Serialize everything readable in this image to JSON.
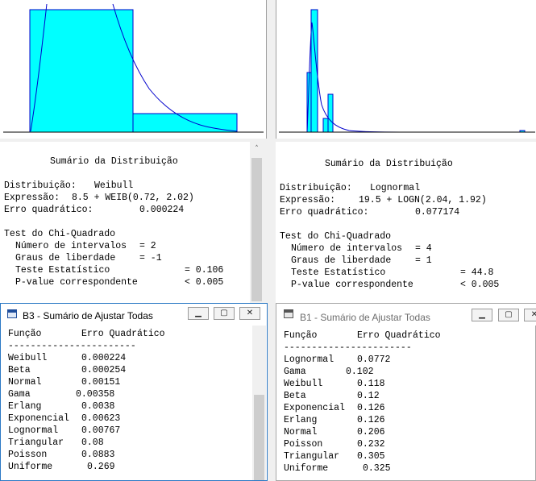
{
  "left_summary": {
    "heading": "Sumário da Distribuição",
    "distribution_label": "Distribuição:",
    "distribution_value": "Weibull",
    "expression_label": "Expressão:",
    "expression_value": "8.5 + WEIB(0.72, 2.02)",
    "error_label": "Erro quadrático:",
    "error_value": "0.000224",
    "chi_heading": "Test do Chi-Quadrado",
    "intervals_label": "Número de intervalos",
    "intervals_value": "= 2",
    "dof_label": "Graus de liberdade",
    "dof_value": "= -1",
    "test_label": "Teste Estatístico",
    "test_value": "= 0.106",
    "pvalue_label": "P-value correspondente",
    "pvalue_value": "< 0.005"
  },
  "right_summary": {
    "heading": "Sumário da Distribuição",
    "distribution_label": "Distribuição:",
    "distribution_value": "Lognormal",
    "expression_label": "Expressão:",
    "expression_value": "19.5 + LOGN(2.04, 1.92)",
    "error_label": "Erro quadrático:",
    "error_value": "0.077174",
    "chi_heading": "Test do Chi-Quadrado",
    "intervals_label": "Número de intervalos",
    "intervals_value": "= 4",
    "dof_label": "Graus de liberdade",
    "dof_value": "= 1",
    "test_label": "Teste Estatístico",
    "test_value": "= 44.8",
    "pvalue_label": "P-value correspondente",
    "pvalue_value": "< 0.005"
  },
  "left_window": {
    "title": "B3 - Sumário de Ajustar Todas",
    "col_function": "Função",
    "col_error": "Erro Quadrático",
    "separator": "-----------------------",
    "rows": [
      {
        "name": "Weibull",
        "value": "0.000224"
      },
      {
        "name": "Beta",
        "value": "0.000254"
      },
      {
        "name": "Normal",
        "value": "0.00151"
      },
      {
        "name": "Gama",
        "value": "0.00358"
      },
      {
        "name": "Erlang",
        "value": "0.0038"
      },
      {
        "name": "Exponencial",
        "value": "0.00623"
      },
      {
        "name": "Lognormal",
        "value": "0.00767"
      },
      {
        "name": "Triangular",
        "value": "0.08"
      },
      {
        "name": "Poisson",
        "value": "0.0883"
      },
      {
        "name": "Uniforme",
        "value": "0.269"
      }
    ]
  },
  "right_window": {
    "title": "B1 - Sumário de Ajustar Todas",
    "col_function": "Função",
    "col_error": "Erro Quadrático",
    "separator": "-----------------------",
    "rows": [
      {
        "name": "Lognormal",
        "value": "0.0772"
      },
      {
        "name": "Gama",
        "value": "0.102"
      },
      {
        "name": "Weibull",
        "value": "0.118"
      },
      {
        "name": "Beta",
        "value": "0.12"
      },
      {
        "name": "Exponencial",
        "value": "0.126"
      },
      {
        "name": "Erlang",
        "value": "0.126"
      },
      {
        "name": "Normal",
        "value": "0.206"
      },
      {
        "name": "Poisson",
        "value": "0.232"
      },
      {
        "name": "Triangular",
        "value": "0.305"
      },
      {
        "name": "Uniforme",
        "value": "0.325"
      }
    ]
  },
  "icons": {
    "scroll_up": "scroll-up-icon",
    "minimize": "minimize-icon",
    "maximize": "maximize-icon",
    "close": "close-icon",
    "app": "app-window-icon"
  },
  "colors": {
    "histogram_fill": "#00ffff",
    "curve": "#0000cc",
    "active_title": "#000000",
    "inactive_title": "#6d6d6d"
  }
}
